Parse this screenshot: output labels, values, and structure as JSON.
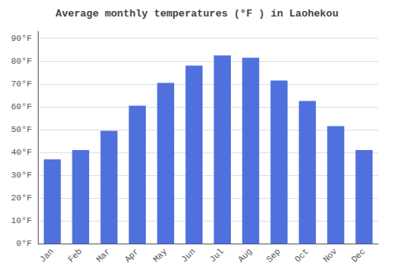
{
  "chart_data": {
    "type": "bar",
    "title": "Average monthly temperatures (°F ) in Laohekou",
    "categories": [
      "Jan",
      "Feb",
      "Mar",
      "Apr",
      "May",
      "Jun",
      "Jul",
      "Aug",
      "Sep",
      "Oct",
      "Nov",
      "Dec"
    ],
    "values": [
      37,
      41,
      49.5,
      60.5,
      70.5,
      78,
      82.5,
      81.5,
      71.5,
      62.5,
      51.5,
      41
    ],
    "ylim": [
      0,
      93
    ],
    "yticks": [
      {
        "value": 0,
        "label": "0°F"
      },
      {
        "value": 10,
        "label": "10°F"
      },
      {
        "value": 20,
        "label": "20°F"
      },
      {
        "value": 30,
        "label": "30°F"
      },
      {
        "value": 40,
        "label": "40°F"
      },
      {
        "value": 50,
        "label": "50°F"
      },
      {
        "value": 60,
        "label": "60°F"
      },
      {
        "value": 70,
        "label": "70°F"
      },
      {
        "value": 80,
        "label": "80°F"
      },
      {
        "value": 90,
        "label": "90°F"
      }
    ],
    "grid": true
  }
}
